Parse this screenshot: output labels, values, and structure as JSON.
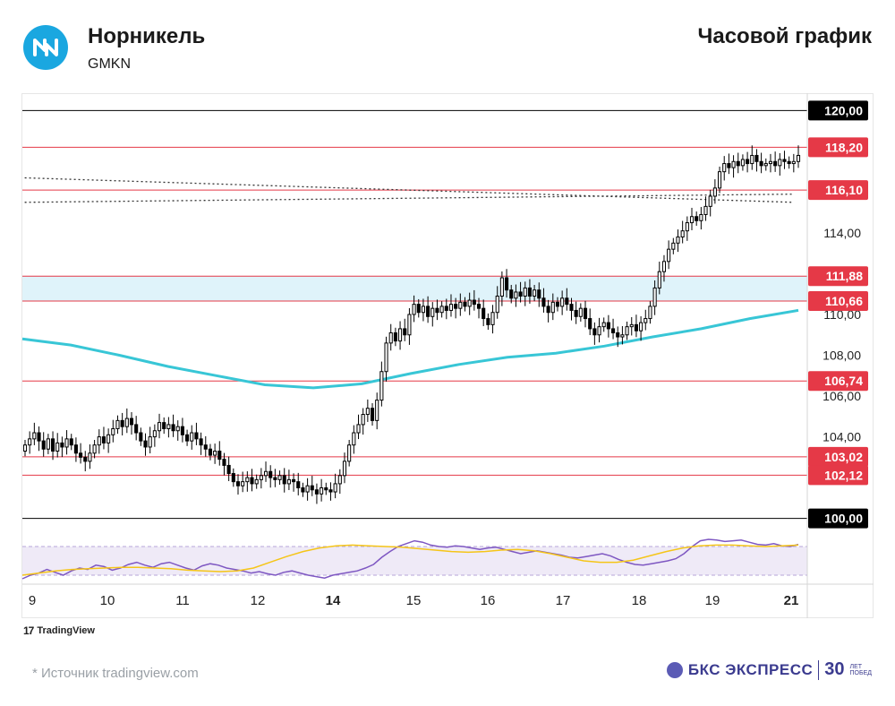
{
  "header": {
    "company": "Норникель",
    "ticker": "GMKN",
    "timeframe": "Часовой график",
    "logo": "nornickel-logo"
  },
  "footer": {
    "platform": "TradingView",
    "source": "*  Источник tradingview.com",
    "brand": "БКС ЭКСПРЕСС",
    "brand_years": "30",
    "brand_years_caption": [
      "ЛЕТ",
      "ПОБЕД"
    ]
  },
  "colors": {
    "candle_up": "#ffffff",
    "candle_down": "#000000",
    "level_red": "#e53947",
    "level_black": "#000000",
    "ma_line": "#38c6d6",
    "zone_fill": "#dff3fa",
    "rsi_line": "#7e57c2",
    "rsi_signal": "#f5c518",
    "rsi_band": "#efeaf7"
  },
  "chart_data": {
    "type": "candlestick",
    "x_ticks": [
      "9",
      "10",
      "11",
      "12",
      "14",
      "15",
      "16",
      "17",
      "18",
      "19",
      "21"
    ],
    "y_ticks": [
      "114,00",
      "110,00",
      "108,00",
      "106,00",
      "104,00"
    ],
    "ylim": [
      99.5,
      120.5
    ],
    "price_levels": [
      {
        "value": 120.0,
        "label": "120,00",
        "color": "black"
      },
      {
        "value": 118.2,
        "label": "118,20",
        "color": "red"
      },
      {
        "value": 116.1,
        "label": "116,10",
        "color": "red"
      },
      {
        "value": 111.88,
        "label": "111,88",
        "color": "red"
      },
      {
        "value": 110.66,
        "label": "110,66",
        "color": "red"
      },
      {
        "value": 106.74,
        "label": "106,74",
        "color": "red"
      },
      {
        "value": 103.02,
        "label": "103,02",
        "color": "red"
      },
      {
        "value": 102.12,
        "label": "102,12",
        "color": "red"
      },
      {
        "value": 100.0,
        "label": "100,00",
        "color": "black"
      }
    ],
    "zone": {
      "from": 110.66,
      "to": 111.88
    },
    "trendlines": [
      {
        "style": "dotted",
        "from": {
          "day": 8.9,
          "price": 116.7
        },
        "to": {
          "day": 21.05,
          "price": 115.5
        }
      },
      {
        "style": "dotted",
        "from": {
          "day": 8.9,
          "price": 115.5
        },
        "to": {
          "day": 21.05,
          "price": 115.9
        }
      }
    ],
    "closes": [
      103.6,
      103.9,
      104.2,
      103.8,
      103.4,
      103.9,
      103.3,
      103.7,
      103.5,
      103.9,
      103.6,
      103.2,
      103.0,
      102.8,
      103.2,
      103.6,
      104.0,
      103.7,
      104.1,
      104.4,
      104.8,
      104.5,
      104.9,
      104.6,
      104.2,
      103.8,
      103.5,
      104.0,
      104.3,
      104.7,
      104.4,
      104.6,
      104.3,
      104.5,
      104.1,
      103.8,
      104.2,
      103.9,
      103.6,
      103.4,
      103.1,
      103.3,
      102.9,
      102.6,
      102.2,
      101.8,
      101.6,
      101.8,
      102.0,
      101.7,
      101.9,
      102.1,
      102.3,
      102.0,
      101.9,
      102.1,
      101.7,
      101.9,
      101.8,
      101.5,
      101.3,
      101.6,
      101.4,
      101.2,
      101.5,
      101.4,
      101.3,
      101.7,
      102.1,
      102.8,
      103.6,
      104.2,
      104.6,
      105.1,
      105.4,
      104.8,
      105.8,
      107.2,
      108.6,
      109.1,
      108.7,
      109.3,
      109.0,
      110.0,
      110.5,
      110.1,
      110.4,
      109.9,
      110.3,
      110.1,
      110.4,
      110.2,
      110.5,
      110.3,
      110.6,
      110.4,
      110.7,
      110.5,
      110.3,
      109.8,
      109.5,
      110.1,
      110.9,
      111.8,
      111.2,
      110.8,
      111.1,
      110.9,
      111.3,
      110.9,
      111.2,
      110.8,
      110.4,
      110.1,
      110.6,
      110.4,
      110.8,
      110.5,
      110.2,
      109.9,
      110.3,
      109.8,
      109.3,
      109.0,
      109.4,
      109.6,
      109.3,
      109.1,
      108.9,
      109.0,
      109.4,
      109.5,
      109.2,
      109.6,
      109.8,
      110.4,
      111.3,
      112.1,
      112.6,
      113.2,
      113.5,
      113.8,
      114.1,
      114.5,
      114.8,
      114.6,
      114.9,
      115.3,
      115.8,
      116.2,
      117.0,
      117.4,
      117.2,
      117.5,
      117.3,
      117.6,
      117.4,
      117.8,
      117.5,
      117.3,
      117.4,
      117.5,
      117.3,
      117.6,
      117.5,
      117.4,
      117.5,
      117.8
    ],
    "ma_series": [
      108.8,
      108.5,
      108.0,
      107.45,
      107.0,
      106.55,
      106.4,
      106.6,
      107.1,
      107.55,
      107.9,
      108.1,
      108.45,
      108.9,
      109.3,
      109.8,
      110.2
    ],
    "rsi_series": [
      25,
      30,
      33,
      38,
      34,
      30,
      36,
      40,
      38,
      44,
      42,
      37,
      40,
      45,
      48,
      44,
      41,
      46,
      48,
      44,
      40,
      37,
      43,
      46,
      44,
      40,
      38,
      36,
      33,
      35,
      32,
      30,
      34,
      36,
      33,
      30,
      28,
      26,
      30,
      32,
      34,
      36,
      40,
      45,
      55,
      63,
      70,
      74,
      78,
      76,
      72,
      70,
      69,
      71,
      70,
      68,
      66,
      68,
      69,
      66,
      63,
      60,
      62,
      64,
      62,
      60,
      58,
      55,
      54,
      56,
      58,
      60,
      57,
      52,
      48,
      45,
      44,
      46,
      48,
      50,
      53,
      60,
      70,
      78,
      80,
      79,
      77,
      78,
      79,
      76,
      73,
      72,
      74,
      71,
      70,
      73
    ],
    "rsi_signal_series": [
      30,
      33,
      36,
      38,
      39,
      40,
      41,
      41,
      40,
      39,
      37,
      36,
      35,
      36,
      40,
      48,
      56,
      63,
      68,
      71,
      72,
      71,
      70,
      69,
      67,
      65,
      63,
      62,
      63,
      65,
      66,
      64,
      60,
      55,
      50,
      48,
      48,
      51,
      57,
      63,
      68,
      71,
      72,
      72,
      71,
      70,
      71,
      72
    ]
  }
}
